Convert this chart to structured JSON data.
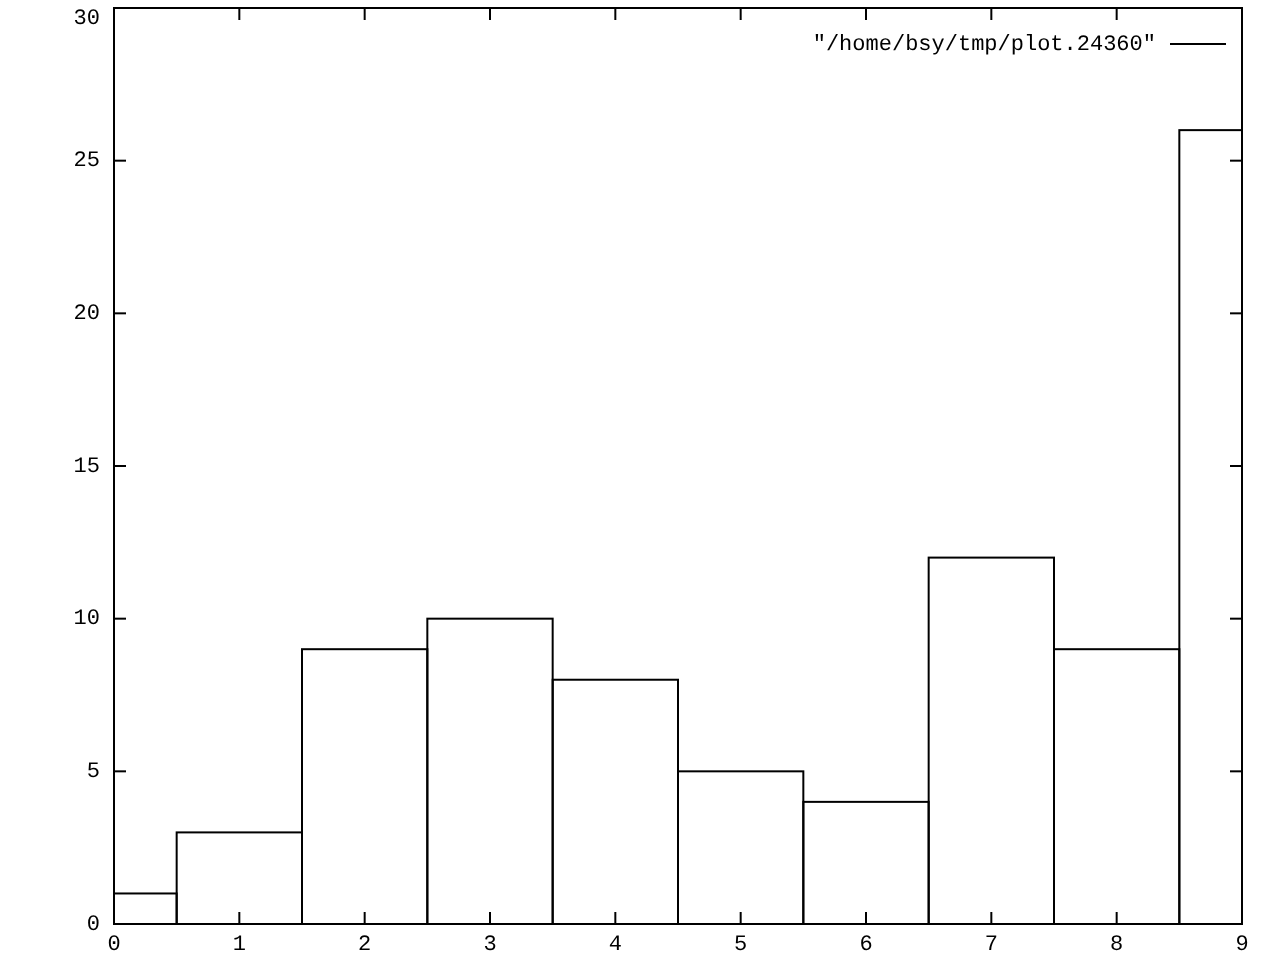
{
  "chart_data": {
    "type": "histogram",
    "bins": [
      0,
      0.5,
      1.5,
      2.5,
      3.5,
      4.5,
      5.5,
      6.5,
      7.5,
      8.5,
      9
    ],
    "series": [
      {
        "name": "\"/home/bsy/tmp/plot.24360\"",
        "color": "#000000",
        "values": [
          1,
          3,
          9,
          10,
          8,
          5,
          4,
          12,
          9,
          26
        ]
      }
    ],
    "xlim": [
      0,
      9
    ],
    "xticks": [
      0,
      1,
      2,
      3,
      4,
      5,
      6,
      7,
      8,
      9
    ],
    "ylim": [
      0,
      30
    ],
    "yticks": [
      0,
      5,
      10,
      15,
      20,
      25,
      30
    ],
    "legend": "top right"
  }
}
